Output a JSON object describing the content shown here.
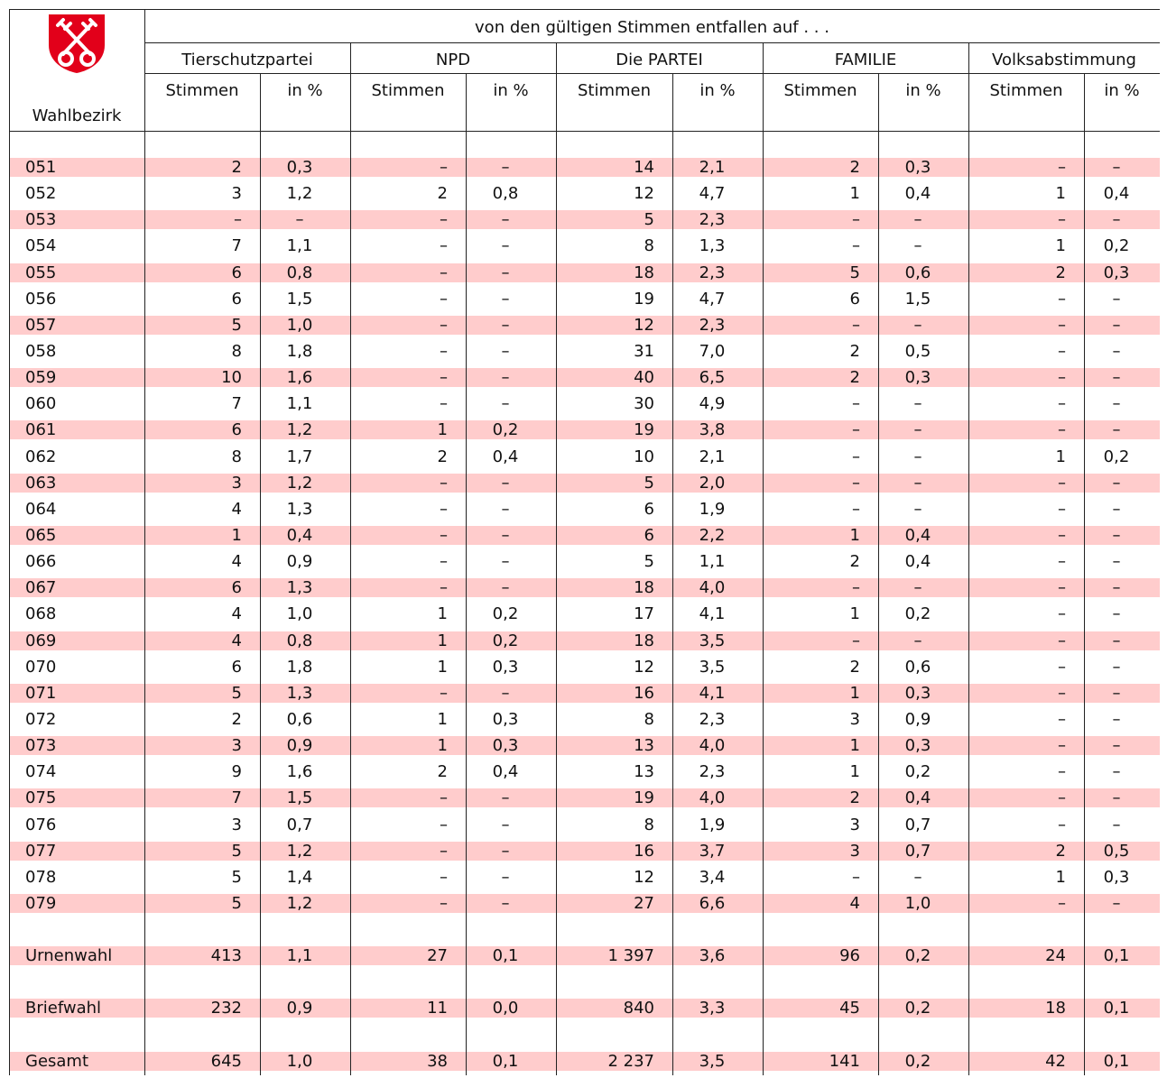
{
  "header": {
    "title": "von den gültigen Stimmen entfallen auf . . .",
    "district_label": "Wahlbezirk",
    "parties": [
      "Tierschutzpartei",
      "NPD",
      "Die PARTEI",
      "FAMILIE",
      "Volksabstimmung"
    ],
    "subheaders": [
      "Stimmen",
      "in %"
    ]
  },
  "table": {
    "rows": [
      [
        "051",
        "2",
        "0,3",
        "–",
        "–",
        "14",
        "2,1",
        "2",
        "0,3",
        "–",
        "–"
      ],
      [
        "052",
        "3",
        "1,2",
        "2",
        "0,8",
        "12",
        "4,7",
        "1",
        "0,4",
        "1",
        "0,4"
      ],
      [
        "053",
        "–",
        "–",
        "–",
        "–",
        "5",
        "2,3",
        "–",
        "–",
        "–",
        "–"
      ],
      [
        "054",
        "7",
        "1,1",
        "–",
        "–",
        "8",
        "1,3",
        "–",
        "–",
        "1",
        "0,2"
      ],
      [
        "055",
        "6",
        "0,8",
        "–",
        "–",
        "18",
        "2,3",
        "5",
        "0,6",
        "2",
        "0,3"
      ],
      [
        "056",
        "6",
        "1,5",
        "–",
        "–",
        "19",
        "4,7",
        "6",
        "1,5",
        "–",
        "–"
      ],
      [
        "057",
        "5",
        "1,0",
        "–",
        "–",
        "12",
        "2,3",
        "–",
        "–",
        "–",
        "–"
      ],
      [
        "058",
        "8",
        "1,8",
        "–",
        "–",
        "31",
        "7,0",
        "2",
        "0,5",
        "–",
        "–"
      ],
      [
        "059",
        "10",
        "1,6",
        "–",
        "–",
        "40",
        "6,5",
        "2",
        "0,3",
        "–",
        "–"
      ],
      [
        "060",
        "7",
        "1,1",
        "–",
        "–",
        "30",
        "4,9",
        "–",
        "–",
        "–",
        "–"
      ],
      [
        "061",
        "6",
        "1,2",
        "1",
        "0,2",
        "19",
        "3,8",
        "–",
        "–",
        "–",
        "–"
      ],
      [
        "062",
        "8",
        "1,7",
        "2",
        "0,4",
        "10",
        "2,1",
        "–",
        "–",
        "1",
        "0,2"
      ],
      [
        "063",
        "3",
        "1,2",
        "–",
        "–",
        "5",
        "2,0",
        "–",
        "–",
        "–",
        "–"
      ],
      [
        "064",
        "4",
        "1,3",
        "–",
        "–",
        "6",
        "1,9",
        "–",
        "–",
        "–",
        "–"
      ],
      [
        "065",
        "1",
        "0,4",
        "–",
        "–",
        "6",
        "2,2",
        "1",
        "0,4",
        "–",
        "–"
      ],
      [
        "066",
        "4",
        "0,9",
        "–",
        "–",
        "5",
        "1,1",
        "2",
        "0,4",
        "–",
        "–"
      ],
      [
        "067",
        "6",
        "1,3",
        "–",
        "–",
        "18",
        "4,0",
        "–",
        "–",
        "–",
        "–"
      ],
      [
        "068",
        "4",
        "1,0",
        "1",
        "0,2",
        "17",
        "4,1",
        "1",
        "0,2",
        "–",
        "–"
      ],
      [
        "069",
        "4",
        "0,8",
        "1",
        "0,2",
        "18",
        "3,5",
        "–",
        "–",
        "–",
        "–"
      ],
      [
        "070",
        "6",
        "1,8",
        "1",
        "0,3",
        "12",
        "3,5",
        "2",
        "0,6",
        "–",
        "–"
      ],
      [
        "071",
        "5",
        "1,3",
        "–",
        "–",
        "16",
        "4,1",
        "1",
        "0,3",
        "–",
        "–"
      ],
      [
        "072",
        "2",
        "0,6",
        "1",
        "0,3",
        "8",
        "2,3",
        "3",
        "0,9",
        "–",
        "–"
      ],
      [
        "073",
        "3",
        "0,9",
        "1",
        "0,3",
        "13",
        "4,0",
        "1",
        "0,3",
        "–",
        "–"
      ],
      [
        "074",
        "9",
        "1,6",
        "2",
        "0,4",
        "13",
        "2,3",
        "1",
        "0,2",
        "–",
        "–"
      ],
      [
        "075",
        "7",
        "1,5",
        "–",
        "–",
        "19",
        "4,0",
        "2",
        "0,4",
        "–",
        "–"
      ],
      [
        "076",
        "3",
        "0,7",
        "–",
        "–",
        "8",
        "1,9",
        "3",
        "0,7",
        "–",
        "–"
      ],
      [
        "077",
        "5",
        "1,2",
        "–",
        "–",
        "16",
        "3,7",
        "3",
        "0,7",
        "2",
        "0,5"
      ],
      [
        "078",
        "5",
        "1,4",
        "–",
        "–",
        "12",
        "3,4",
        "–",
        "–",
        "1",
        "0,3"
      ],
      [
        "079",
        "5",
        "1,2",
        "–",
        "–",
        "27",
        "6,6",
        "4",
        "1,0",
        "–",
        "–"
      ]
    ],
    "totals": [
      [
        "Urnenwahl",
        "413",
        "1,1",
        "27",
        "0,1",
        "1 397",
        "3,6",
        "96",
        "0,2",
        "24",
        "0,1"
      ],
      [
        "Briefwahl",
        "232",
        "0,9",
        "11",
        "0,0",
        "840",
        "3,3",
        "45",
        "0,2",
        "18",
        "0,1"
      ],
      [
        "Gesamt",
        "645",
        "1,0",
        "38",
        "0,1",
        "2 237",
        "3,5",
        "141",
        "0,2",
        "42",
        "0,1"
      ]
    ]
  }
}
